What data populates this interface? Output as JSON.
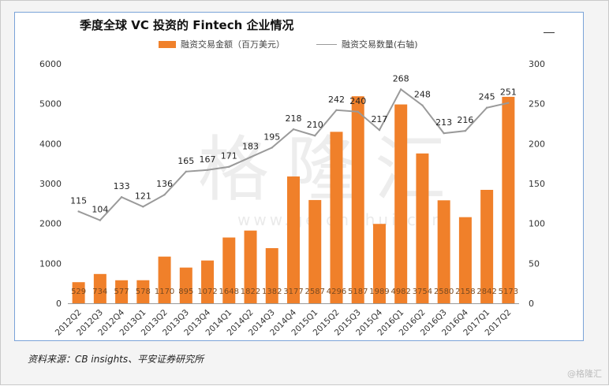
{
  "colors": {
    "bar": "#f0802a",
    "line": "#9a9a9a",
    "panel_border": "#7aa3d8"
  },
  "watermark": {
    "text": "格隆汇",
    "url": "www.gelonghui.com",
    "corner": "@格隆汇"
  },
  "footer": {
    "source": "资料来源：CB insights、平安证券研究所"
  },
  "chart_data": {
    "type": "bar",
    "title": "季度全球 VC 投资的 Fintech 企业情况",
    "categories": [
      "2012Q2",
      "2012Q3",
      "2012Q4",
      "2013Q1",
      "2013Q2",
      "2013Q3",
      "2013Q4",
      "2014Q1",
      "2014Q2",
      "2014Q3",
      "2014Q4",
      "2015Q1",
      "2015Q2",
      "2015Q3",
      "2015Q4",
      "2016Q1",
      "2016Q2",
      "2016Q3",
      "2016Q4",
      "2017Q1",
      "2017Q2"
    ],
    "series": [
      {
        "name": "融资交易金额（百万美元）",
        "type": "bar",
        "axis": "left",
        "values": [
          529,
          734,
          577,
          578,
          1170,
          895,
          1072,
          1648,
          1822,
          1382,
          3177,
          2587,
          4296,
          5187,
          1989,
          4982,
          3754,
          2580,
          2158,
          2842,
          5173
        ]
      },
      {
        "name": "融资交易数量(右轴)",
        "type": "line",
        "axis": "right",
        "values": [
          115,
          104,
          133,
          121,
          136,
          165,
          167,
          171,
          183,
          195,
          218,
          210,
          242,
          240,
          217,
          268,
          248,
          213,
          216,
          245,
          251
        ]
      }
    ],
    "ylim_left": [
      0,
      6000
    ],
    "yticks_left": [
      0,
      1000,
      2000,
      3000,
      4000,
      5000,
      6000
    ],
    "ylim_right": [
      0,
      300
    ],
    "yticks_right": [
      0,
      50,
      100,
      150,
      200,
      250,
      300
    ],
    "grid": false,
    "legend_position": "top"
  }
}
